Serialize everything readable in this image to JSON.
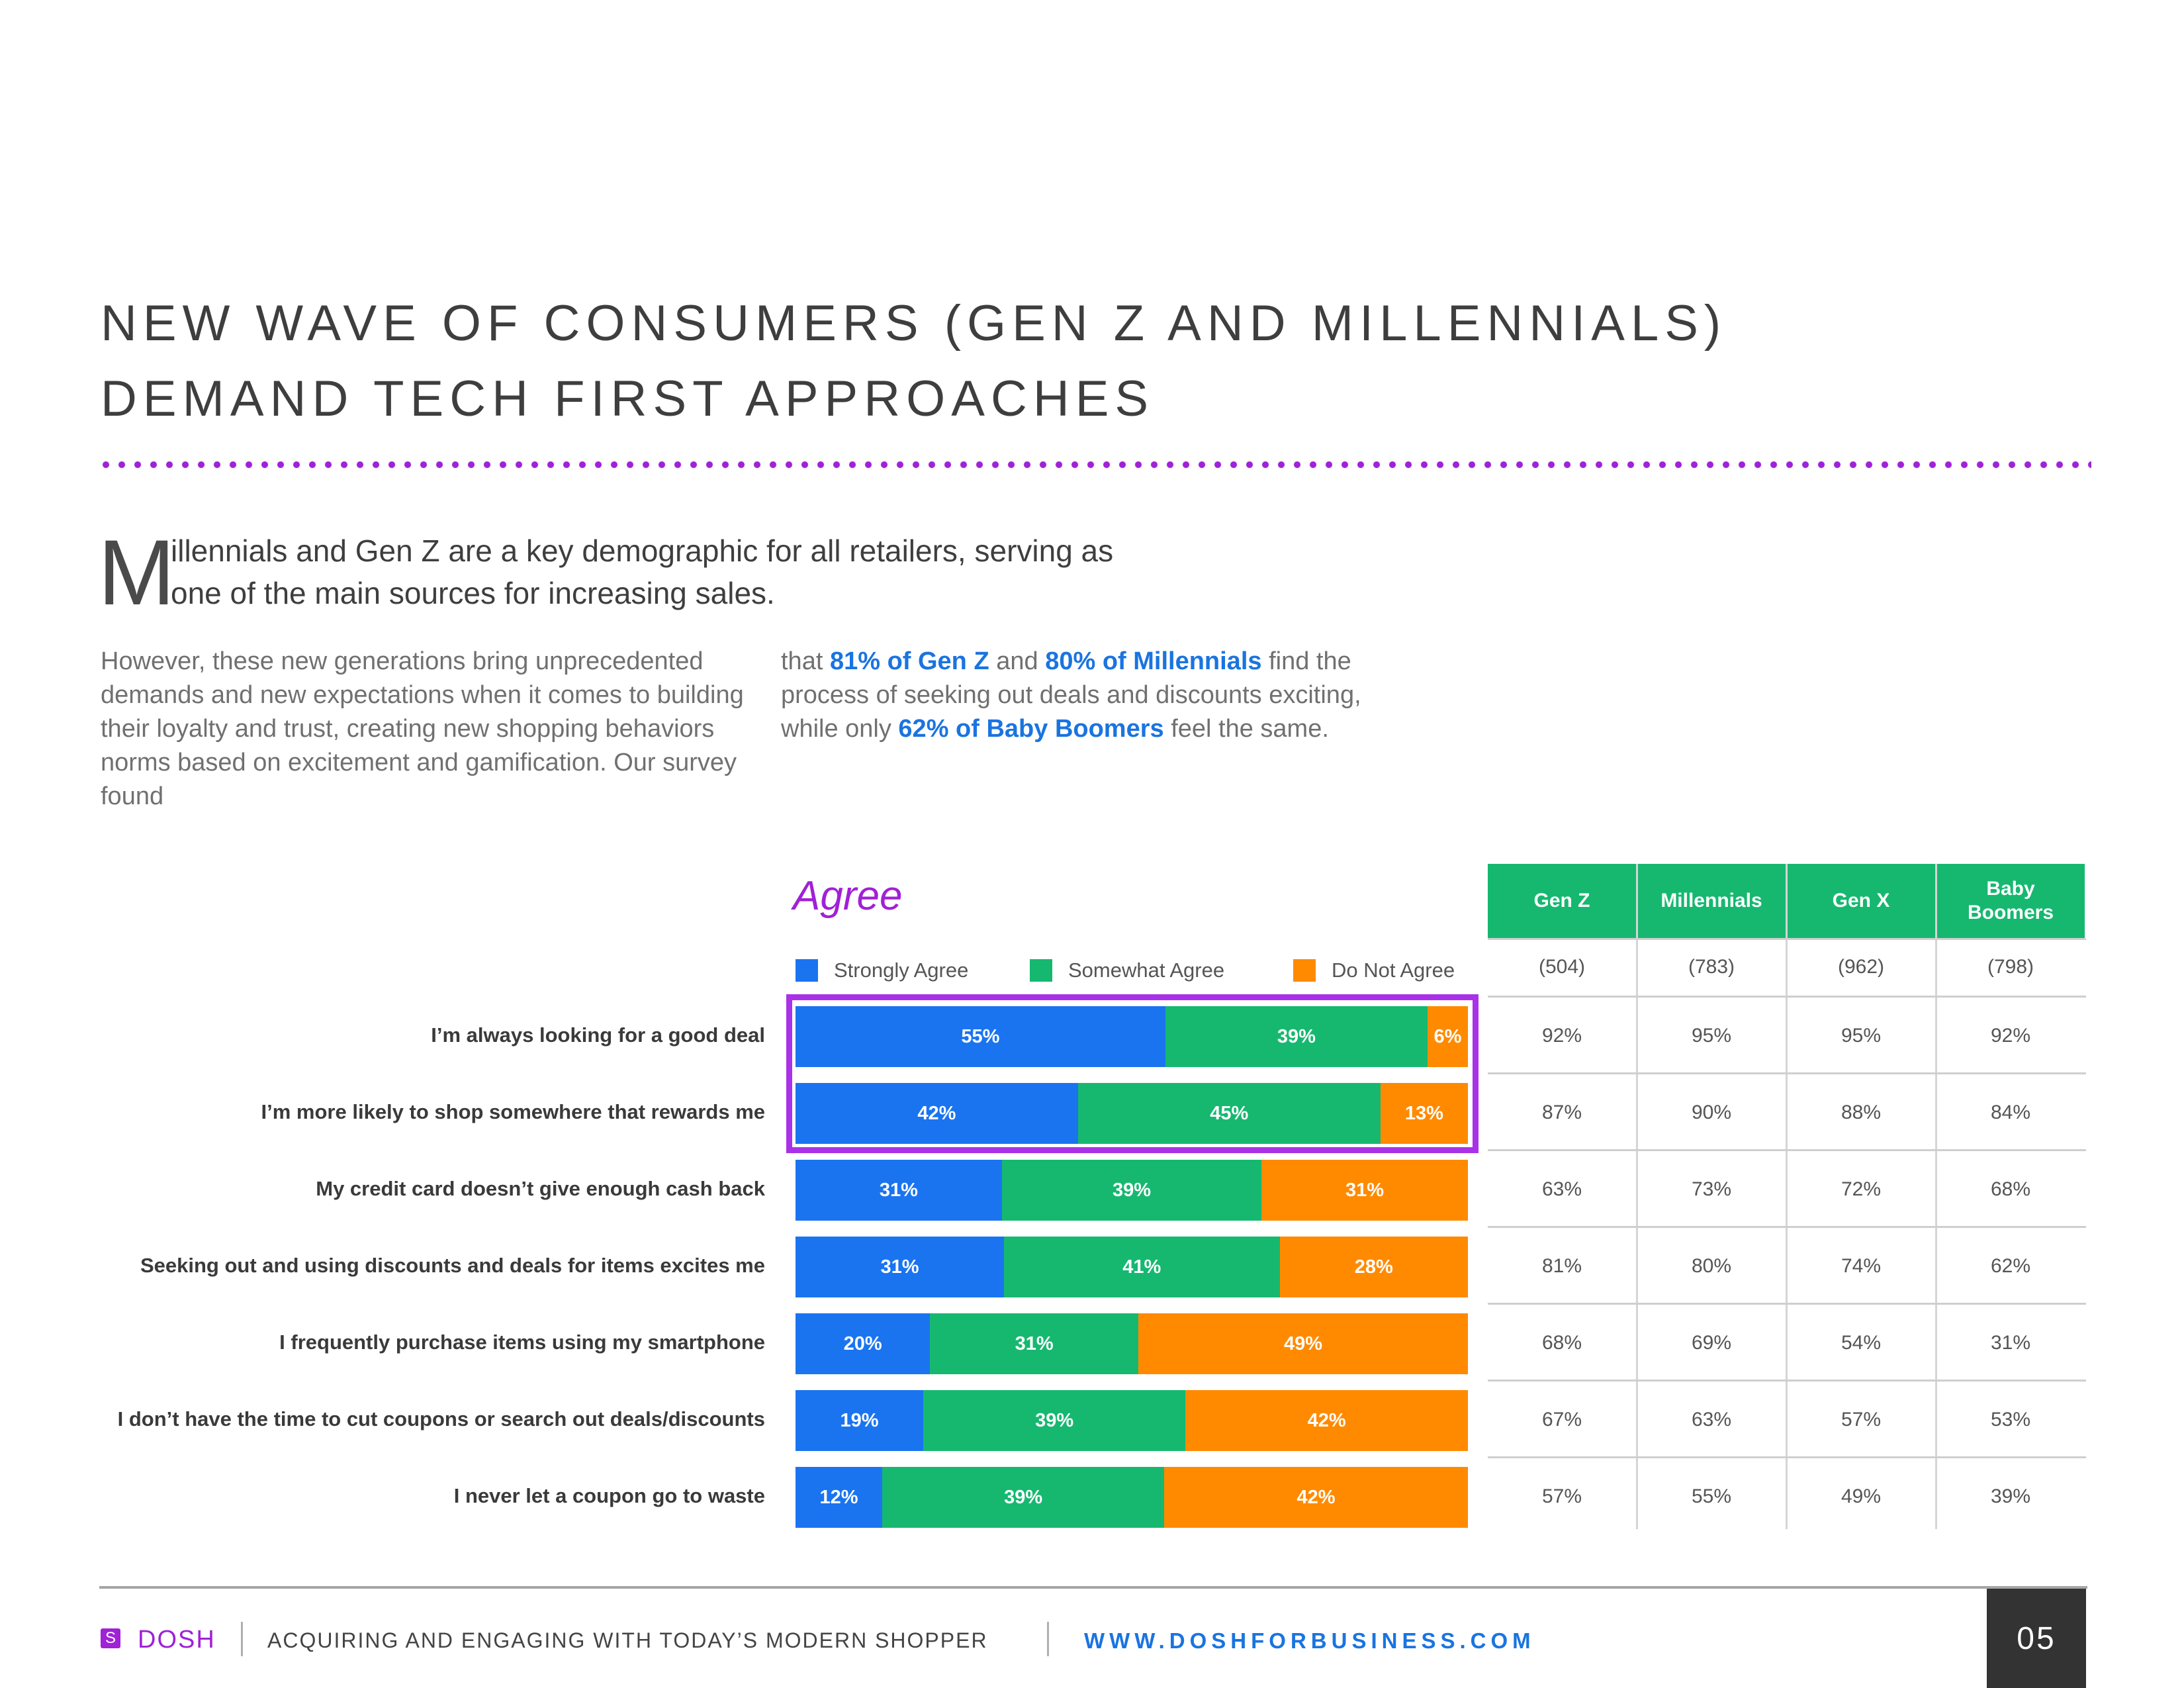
{
  "title": "NEW WAVE OF CONSUMERS (GEN Z AND MILLENNIALS) DEMAND TECH FIRST APPROACHES",
  "lead": {
    "initial": "M",
    "rest": "illennials and Gen Z are a key demographic for all retailers, serving as one of the main sources for increasing sales."
  },
  "body": {
    "col1": "However, these new generations bring unprecedented demands and new expectations when it comes to building their loyalty and trust, creating new shopping behaviors norms based on excitement and gamification. Our survey found",
    "col2_p1": "that ",
    "col2_h1": "81% of Gen Z",
    "col2_p2": " and ",
    "col2_h2": "80% of Millennials",
    "col2_p3": " find the process of seeking out deals and discounts exciting, while only ",
    "col2_h3": "62% of Baby Boomers",
    "col2_p4": " feel the same."
  },
  "chart_data": {
    "type": "bar",
    "orientation": "horizontal-stacked-100",
    "title": "Agree",
    "legend": [
      "Strongly Agree",
      "Somewhat Agree",
      "Do Not Agree"
    ],
    "colors": {
      "strongly": "#1a74f0",
      "somewhat": "#16b870",
      "not": "#ff8a00"
    },
    "categories": [
      "I’m always looking for a good deal",
      "I’m more likely to shop somewhere that rewards me",
      "My credit card doesn’t give enough cash back",
      "Seeking out and using discounts and deals for items excites me",
      "I frequently purchase items using my smartphone",
      "I don’t have the time to cut coupons or search out deals/discounts",
      "I never let a coupon go to waste"
    ],
    "series": [
      {
        "name": "Strongly Agree",
        "values": [
          55,
          42,
          31,
          31,
          20,
          19,
          12
        ]
      },
      {
        "name": "Somewhat Agree",
        "values": [
          39,
          45,
          39,
          41,
          31,
          39,
          39
        ]
      },
      {
        "name": "Do Not Agree",
        "values": [
          6,
          13,
          31,
          28,
          49,
          42,
          42
        ]
      }
    ],
    "highlighted_rows": [
      0,
      1
    ]
  },
  "table": {
    "headers": [
      "Gen Z",
      "Millennials",
      "Gen X",
      "Baby Boomers"
    ],
    "sample_sizes": [
      "(504)",
      "(783)",
      "(962)",
      "(798)"
    ],
    "rows": [
      [
        "92%",
        "95%",
        "95%",
        "92%"
      ],
      [
        "87%",
        "90%",
        "88%",
        "84%"
      ],
      [
        "63%",
        "73%",
        "72%",
        "68%"
      ],
      [
        "81%",
        "80%",
        "74%",
        "62%"
      ],
      [
        "68%",
        "69%",
        "54%",
        "31%"
      ],
      [
        "67%",
        "63%",
        "57%",
        "53%"
      ],
      [
        "57%",
        "55%",
        "49%",
        "39%"
      ]
    ]
  },
  "footer": {
    "logo_glyph": "S",
    "brand": "DOSH",
    "document": "ACQUIRING AND ENGAGING WITH TODAY’S MODERN SHOPPER",
    "url": "WWW.DOSHFORBUSINESS.COM",
    "page": "05"
  }
}
